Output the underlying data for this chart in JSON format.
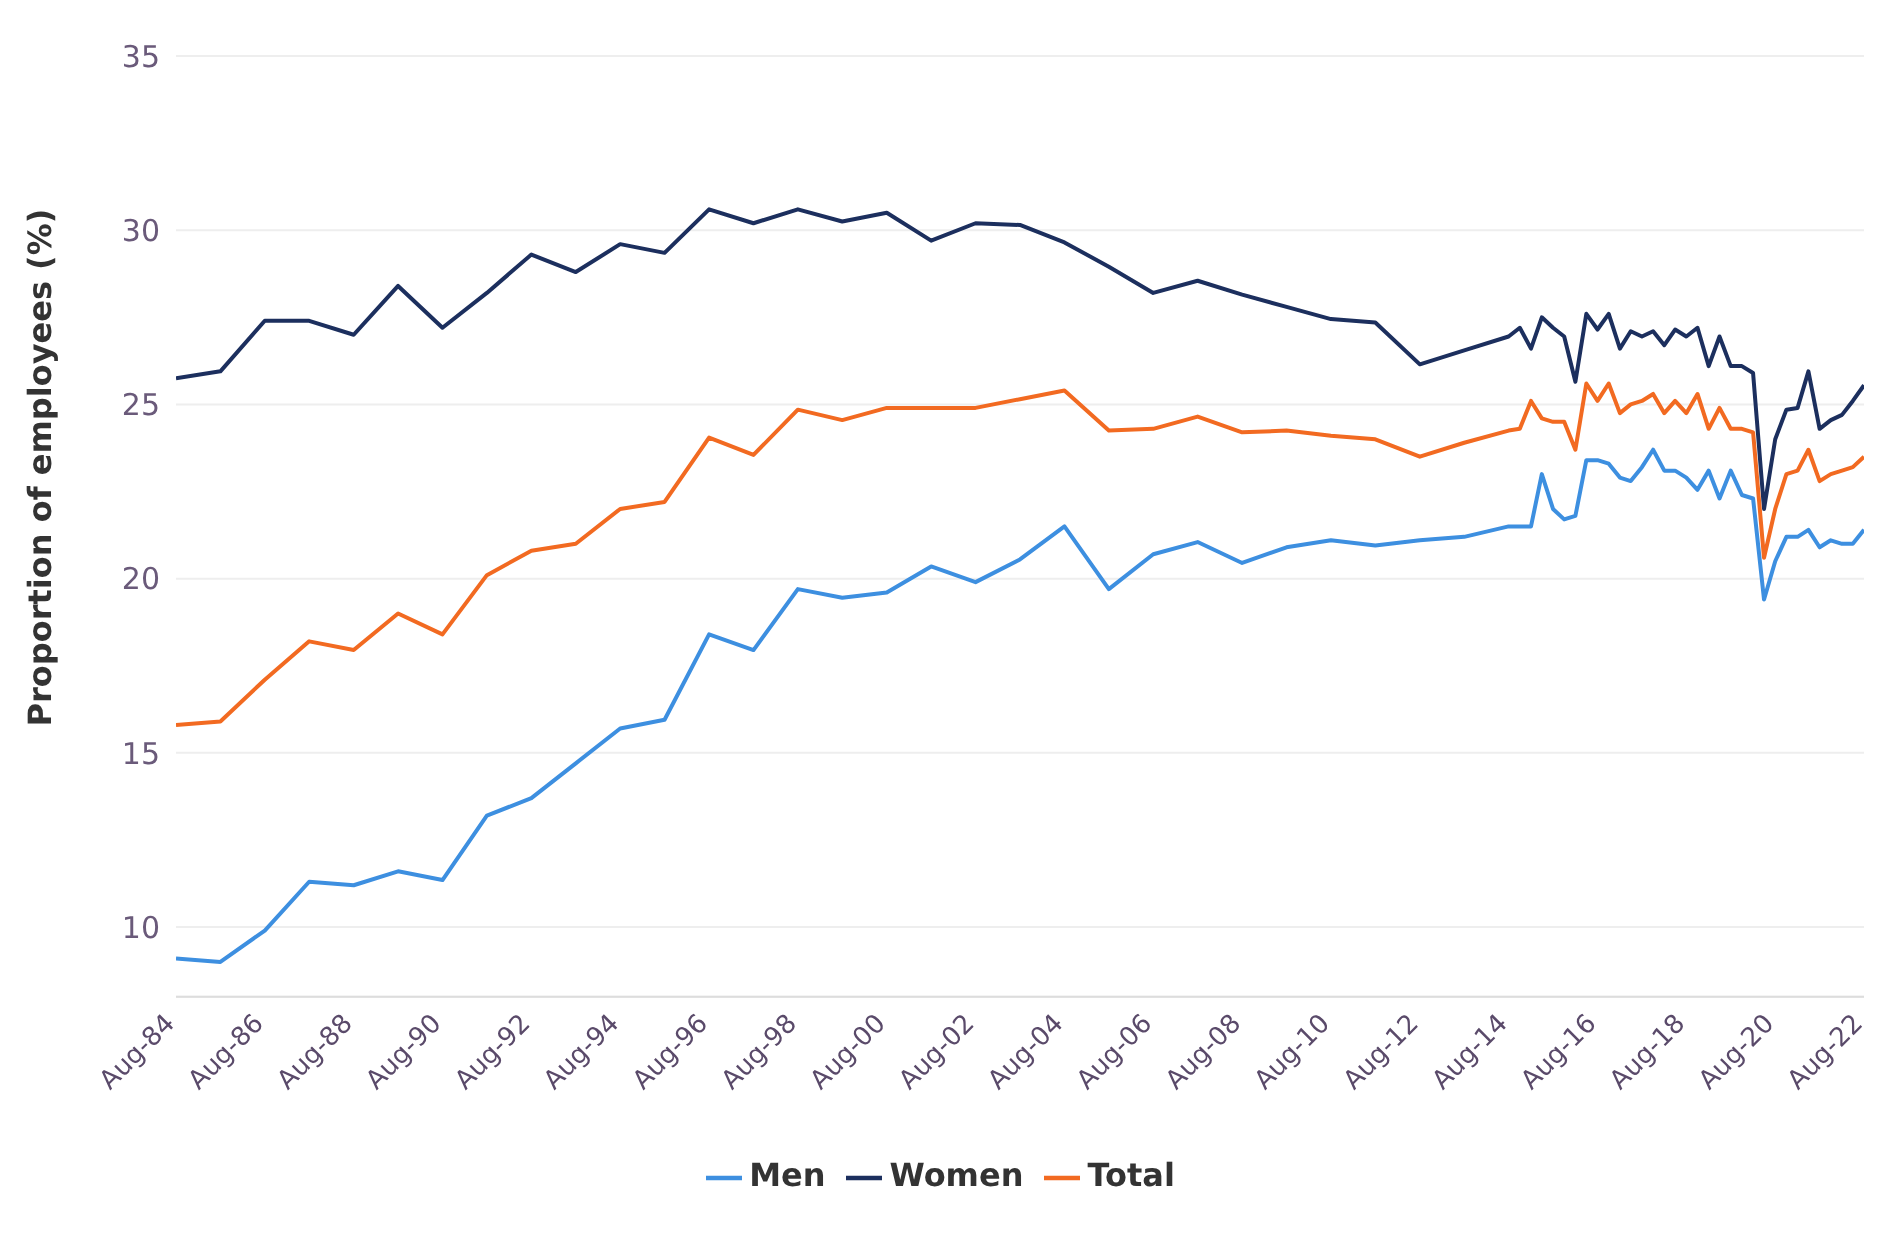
{
  "chart_data": {
    "type": "line",
    "ylabel": "Proportion of employees (%)",
    "x": [
      "1984-08",
      "1985-08",
      "1986-08",
      "1987-08",
      "1988-08",
      "1989-08",
      "1990-08",
      "1991-08",
      "1992-08",
      "1993-08",
      "1994-08",
      "1995-08",
      "1996-08",
      "1997-08",
      "1998-08",
      "1999-08",
      "2000-08",
      "2001-08",
      "2002-08",
      "2003-08",
      "2004-08",
      "2005-08",
      "2006-08",
      "2007-08",
      "2008-08",
      "2009-08",
      "2010-08",
      "2011-08",
      "2012-08",
      "2013-08",
      "2014-08",
      "2014-11",
      "2015-02",
      "2015-05",
      "2015-08",
      "2015-11",
      "2016-02",
      "2016-05",
      "2016-08",
      "2016-11",
      "2017-02",
      "2017-05",
      "2017-08",
      "2017-11",
      "2018-02",
      "2018-05",
      "2018-08",
      "2018-11",
      "2019-02",
      "2019-05",
      "2019-08",
      "2019-11",
      "2020-02",
      "2020-05",
      "2020-08",
      "2020-11",
      "2021-02",
      "2021-05",
      "2021-08",
      "2021-11",
      "2022-02",
      "2022-05",
      "2022-08"
    ],
    "series": [
      {
        "name": "Men",
        "color": "#3d8fe0",
        "values": [
          9.1,
          9.0,
          9.9,
          11.3,
          11.2,
          11.6,
          11.35,
          13.2,
          13.7,
          14.7,
          15.7,
          15.95,
          18.4,
          17.95,
          19.7,
          19.45,
          19.6,
          20.35,
          19.9,
          20.55,
          21.5,
          19.7,
          20.7,
          21.05,
          20.45,
          20.9,
          21.1,
          20.95,
          21.1,
          21.2,
          21.5,
          21.5,
          21.5,
          23.0,
          22.0,
          21.7,
          21.8,
          23.4,
          23.4,
          23.3,
          22.9,
          22.8,
          23.2,
          23.7,
          23.1,
          23.1,
          22.9,
          22.55,
          23.1,
          22.3,
          23.1,
          22.4,
          22.3,
          19.4,
          20.5,
          21.2,
          21.2,
          21.4,
          20.9,
          21.1,
          21.0,
          21.0,
          21.4
        ]
      },
      {
        "name": "Women",
        "color": "#1c2f5e",
        "values": [
          25.75,
          25.95,
          27.4,
          27.4,
          27.0,
          28.4,
          27.2,
          28.2,
          29.3,
          28.8,
          29.6,
          29.35,
          30.6,
          30.2,
          30.6,
          30.25,
          30.5,
          29.7,
          30.2,
          30.15,
          29.65,
          28.95,
          28.2,
          28.55,
          28.15,
          27.8,
          27.45,
          27.35,
          26.15,
          26.55,
          26.95,
          27.2,
          26.6,
          27.5,
          27.2,
          26.95,
          25.65,
          27.6,
          27.15,
          27.6,
          26.6,
          27.1,
          26.95,
          27.1,
          26.7,
          27.15,
          26.95,
          27.2,
          26.1,
          26.95,
          26.1,
          26.1,
          25.9,
          22.0,
          24.0,
          24.85,
          24.9,
          25.95,
          24.3,
          24.55,
          24.7,
          25.1,
          25.55
        ]
      },
      {
        "name": "Total",
        "color": "#f26a21",
        "values": [
          15.8,
          15.9,
          17.1,
          18.2,
          17.95,
          19.0,
          18.4,
          20.1,
          20.8,
          21.0,
          22.0,
          22.2,
          24.05,
          23.55,
          24.85,
          24.55,
          24.9,
          24.9,
          24.9,
          25.15,
          25.4,
          24.25,
          24.3,
          24.65,
          24.2,
          24.25,
          24.1,
          24.0,
          23.5,
          23.9,
          24.25,
          24.3,
          25.1,
          24.6,
          24.5,
          24.5,
          23.7,
          25.6,
          25.1,
          25.6,
          24.75,
          25.0,
          25.1,
          25.3,
          24.75,
          25.1,
          24.75,
          25.3,
          24.3,
          24.9,
          24.3,
          24.3,
          24.2,
          20.6,
          22.0,
          23.0,
          23.1,
          23.7,
          22.8,
          23.0,
          23.1,
          23.2,
          23.5
        ]
      }
    ],
    "xlim": [
      "1984-08",
      "2022-08"
    ],
    "xticks": [
      {
        "value": "1984-08",
        "label": "Aug-84"
      },
      {
        "value": "1986-08",
        "label": "Aug-86"
      },
      {
        "value": "1988-08",
        "label": "Aug-88"
      },
      {
        "value": "1990-08",
        "label": "Aug-90"
      },
      {
        "value": "1992-08",
        "label": "Aug-92"
      },
      {
        "value": "1994-08",
        "label": "Aug-94"
      },
      {
        "value": "1996-08",
        "label": "Aug-96"
      },
      {
        "value": "1998-08",
        "label": "Aug-98"
      },
      {
        "value": "2000-08",
        "label": "Aug-00"
      },
      {
        "value": "2002-08",
        "label": "Aug-02"
      },
      {
        "value": "2004-08",
        "label": "Aug-04"
      },
      {
        "value": "2006-08",
        "label": "Aug-06"
      },
      {
        "value": "2008-08",
        "label": "Aug-08"
      },
      {
        "value": "2010-08",
        "label": "Aug-10"
      },
      {
        "value": "2012-08",
        "label": "Aug-12"
      },
      {
        "value": "2014-08",
        "label": "Aug-14"
      },
      {
        "value": "2016-08",
        "label": "Aug-16"
      },
      {
        "value": "2018-08",
        "label": "Aug-18"
      },
      {
        "value": "2020-08",
        "label": "Aug-20"
      },
      {
        "value": "2022-08",
        "label": "Aug-22"
      }
    ],
    "ylim": [
      8,
      35
    ],
    "yticks": [
      10,
      15,
      20,
      25,
      30,
      35
    ],
    "grid": "y",
    "legend": "bottom",
    "marker": "none",
    "line_style": "solid"
  }
}
